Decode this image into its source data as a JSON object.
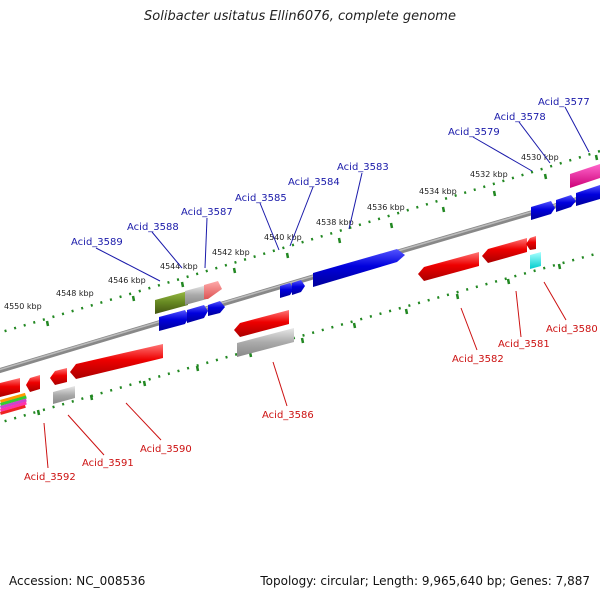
{
  "title": "Solibacter usitatus Ellin6076, complete genome",
  "footer": {
    "accession": "Accession: NC_008536",
    "topology": "Topology: circular; Length: 9,965,640 bp; Genes: 7,887"
  },
  "scale_labels": [
    "4550 kbp",
    "4548 kbp",
    "4546 kbp",
    "4544 kbp",
    "4542 kbp",
    "4540 kbp",
    "4538 kbp",
    "4536 kbp",
    "4534 kbp",
    "4532 kbp",
    "4530 kbp"
  ],
  "genes_forward": [
    "Acid_3589",
    "Acid_3588",
    "Acid_3587",
    "Acid_3585",
    "Acid_3584",
    "Acid_3583",
    "Acid_3579",
    "Acid_3578",
    "Acid_3577"
  ],
  "genes_reverse": [
    "Acid_3592",
    "Acid_3591",
    "Acid_3590",
    "Acid_3586",
    "Acid_3582",
    "Acid_3581",
    "Acid_3580"
  ],
  "colors": {
    "forward_label": "#1a1aaa",
    "reverse_label": "#cc1111",
    "forward_gene": "#0000dd",
    "reverse_gene": "#ee0000",
    "tick": "#228822",
    "backbone": "#777777"
  }
}
